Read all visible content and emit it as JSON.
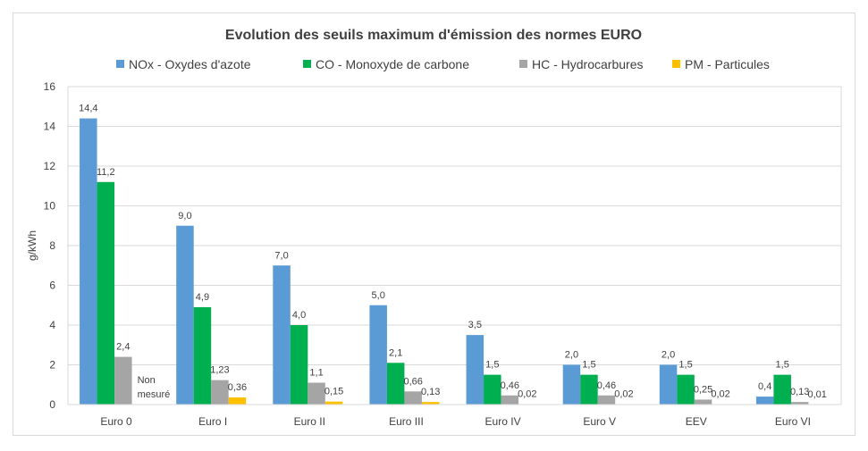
{
  "chart_data": {
    "type": "bar",
    "title": "Evolution des seuils maximum d'émission des normes EURO",
    "ylabel": "g/kWh",
    "xlabel": "",
    "ylim": [
      0,
      16
    ],
    "yticks": [
      "0",
      "2",
      "4",
      "6",
      "8",
      "10",
      "12",
      "14",
      "16"
    ],
    "ytick_values": [
      0,
      2,
      4,
      6,
      8,
      10,
      12,
      14,
      16
    ],
    "grid": true,
    "legend_position": "top",
    "categories": [
      "Euro 0",
      "Euro I",
      "Euro II",
      "Euro III",
      "Euro IV",
      "Euro V",
      "EEV",
      "Euro VI"
    ],
    "series": [
      {
        "name": "NOx - Oxydes d'azote",
        "color": "#5b9bd5",
        "values": [
          14.4,
          9.0,
          7.0,
          5.0,
          3.5,
          2.0,
          2.0,
          0.4
        ],
        "labels": [
          "14,4",
          "9,0",
          "7,0",
          "5,0",
          "3,5",
          "2,0",
          "2,0",
          "0,4"
        ]
      },
      {
        "name": "CO - Monoxyde de carbone",
        "color": "#00b050",
        "values": [
          11.2,
          4.9,
          4.0,
          2.1,
          1.5,
          1.5,
          1.5,
          1.5
        ],
        "labels": [
          "11,2",
          "4,9",
          "4,0",
          "2,1",
          "1,5",
          "1,5",
          "1,5",
          "1,5"
        ]
      },
      {
        "name": "HC - Hydrocarbures",
        "color": "#a5a5a5",
        "values": [
          2.4,
          1.23,
          1.1,
          0.66,
          0.46,
          0.46,
          0.25,
          0.13
        ],
        "labels": [
          "2,4",
          "1,23",
          "1,1",
          "0,66",
          "0,46",
          "0,46",
          "0,25",
          "0,13"
        ]
      },
      {
        "name": "PM - Particules",
        "color": "#ffc000",
        "values": [
          null,
          0.36,
          0.15,
          0.13,
          0.02,
          0.02,
          0.02,
          0.01
        ],
        "labels": [
          "Non mesuré",
          "0,36",
          "0,15",
          "0,13",
          "0,02",
          "0,02",
          "0,02",
          "0,01"
        ]
      }
    ]
  }
}
